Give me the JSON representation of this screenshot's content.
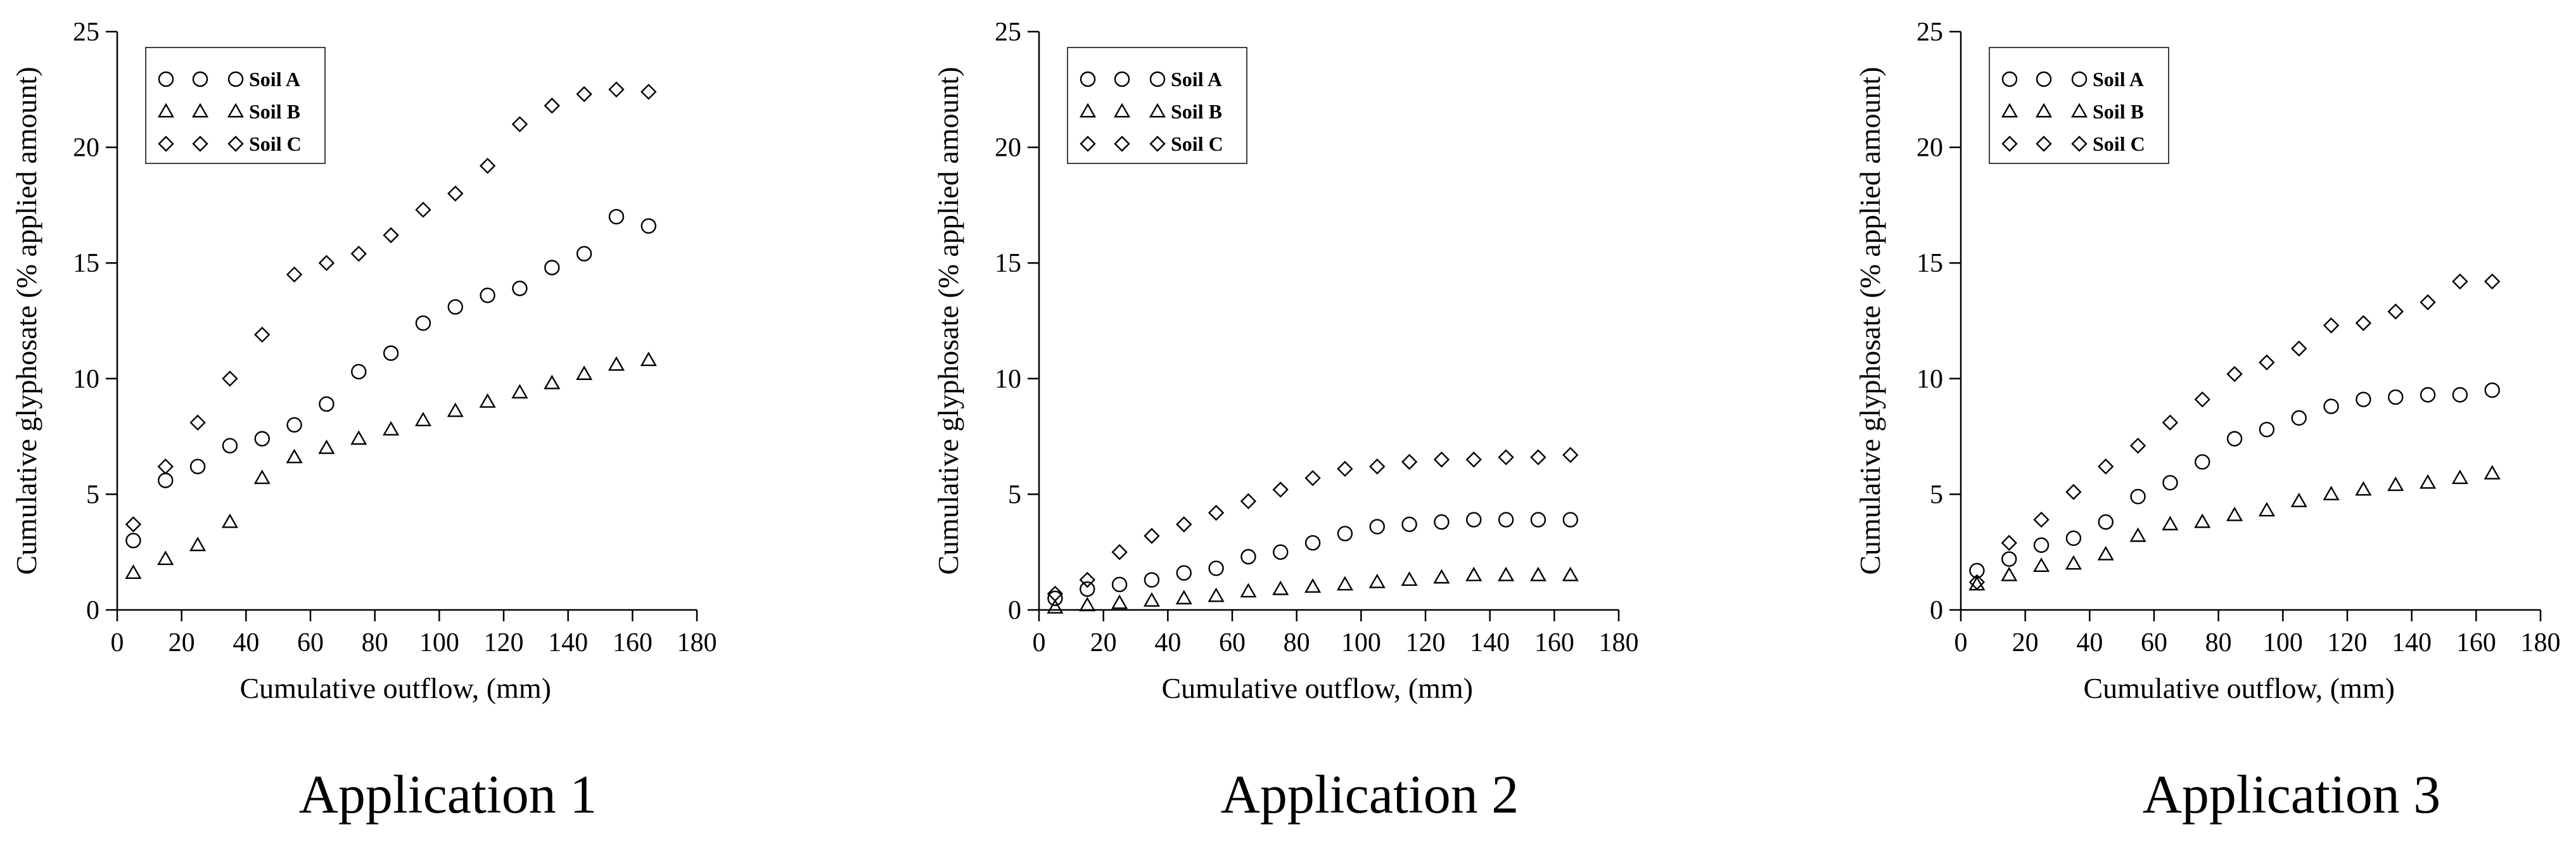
{
  "chart_data": [
    {
      "type": "scatter",
      "caption": "Application 1",
      "xlabel": "Cumulative outflow, (mm)",
      "ylabel": "Cumulative glyphosate (% applied amount)",
      "xlim": [
        0,
        180
      ],
      "ylim": [
        0,
        25
      ],
      "xticks": [
        0,
        20,
        40,
        60,
        80,
        100,
        120,
        140,
        160,
        180
      ],
      "yticks": [
        0,
        5,
        10,
        15,
        20,
        25
      ],
      "grid": false,
      "legend_position": "top-left",
      "x": [
        5,
        15,
        25,
        35,
        45,
        55,
        65,
        75,
        85,
        95,
        105,
        115,
        125,
        135,
        145,
        155,
        165
      ],
      "series": [
        {
          "name": "Soil A",
          "marker": "circle",
          "values": [
            3.0,
            5.6,
            6.2,
            7.1,
            7.4,
            8.0,
            8.9,
            10.3,
            11.1,
            12.4,
            13.1,
            13.6,
            13.9,
            14.8,
            15.4,
            17.0,
            16.6
          ]
        },
        {
          "name": "Soil B",
          "marker": "triangle",
          "values": [
            1.6,
            2.2,
            2.8,
            3.8,
            5.7,
            6.6,
            7.0,
            7.4,
            7.8,
            8.2,
            8.6,
            9.0,
            9.4,
            9.8,
            10.2,
            10.6,
            10.8
          ]
        },
        {
          "name": "Soil C",
          "marker": "diamond",
          "values": [
            3.7,
            6.2,
            8.1,
            10.0,
            11.9,
            14.5,
            15.0,
            15.4,
            16.2,
            17.3,
            18.0,
            19.2,
            21.0,
            21.8,
            22.3,
            22.5,
            22.4
          ]
        }
      ]
    },
    {
      "type": "scatter",
      "caption": "Application 2",
      "xlabel": "Cumulative outflow, (mm)",
      "ylabel": "Cumulative glyphosate (% applied amount)",
      "xlim": [
        0,
        180
      ],
      "ylim": [
        0,
        25
      ],
      "xticks": [
        0,
        20,
        40,
        60,
        80,
        100,
        120,
        140,
        160,
        180
      ],
      "yticks": [
        0,
        5,
        10,
        15,
        20,
        25
      ],
      "grid": false,
      "legend_position": "top-left",
      "x": [
        5,
        15,
        25,
        35,
        45,
        55,
        65,
        75,
        85,
        95,
        105,
        115,
        125,
        135,
        145,
        155,
        165
      ],
      "series": [
        {
          "name": "Soil A",
          "marker": "circle",
          "values": [
            0.5,
            0.9,
            1.1,
            1.3,
            1.6,
            1.8,
            2.3,
            2.5,
            2.9,
            3.3,
            3.6,
            3.7,
            3.8,
            3.9,
            3.9,
            3.9,
            3.9
          ]
        },
        {
          "name": "Soil B",
          "marker": "triangle",
          "values": [
            0.1,
            0.2,
            0.3,
            0.4,
            0.5,
            0.6,
            0.8,
            0.9,
            1.0,
            1.1,
            1.2,
            1.3,
            1.4,
            1.5,
            1.5,
            1.5,
            1.5
          ]
        },
        {
          "name": "Soil C",
          "marker": "diamond",
          "values": [
            0.7,
            1.3,
            2.5,
            3.2,
            3.7,
            4.2,
            4.7,
            5.2,
            5.7,
            6.1,
            6.2,
            6.4,
            6.5,
            6.5,
            6.6,
            6.6,
            6.7
          ]
        }
      ]
    },
    {
      "type": "scatter",
      "caption": "Application 3",
      "xlabel": "Cumulative outflow, (mm)",
      "ylabel": "Cumulative glyphosate (% applied amount)",
      "xlim": [
        0,
        180
      ],
      "ylim": [
        0,
        25
      ],
      "xticks": [
        0,
        20,
        40,
        60,
        80,
        100,
        120,
        140,
        160,
        180
      ],
      "yticks": [
        0,
        5,
        10,
        15,
        20,
        25
      ],
      "grid": false,
      "legend_position": "top-left",
      "x": [
        5,
        15,
        25,
        35,
        45,
        55,
        65,
        75,
        85,
        95,
        105,
        115,
        125,
        135,
        145,
        155,
        165
      ],
      "series": [
        {
          "name": "Soil A",
          "marker": "circle",
          "values": [
            1.7,
            2.2,
            2.8,
            3.1,
            3.8,
            4.9,
            5.5,
            6.4,
            7.4,
            7.8,
            8.3,
            8.8,
            9.1,
            9.2,
            9.3,
            9.3,
            9.5
          ]
        },
        {
          "name": "Soil B",
          "marker": "triangle",
          "values": [
            1.1,
            1.5,
            1.9,
            2.0,
            2.4,
            3.2,
            3.7,
            3.8,
            4.1,
            4.3,
            4.7,
            5.0,
            5.2,
            5.4,
            5.5,
            5.7,
            5.9
          ]
        },
        {
          "name": "Soil C",
          "marker": "diamond",
          "values": [
            1.2,
            2.9,
            3.9,
            5.1,
            6.2,
            7.1,
            8.1,
            9.1,
            10.2,
            10.7,
            11.3,
            12.3,
            12.4,
            12.9,
            13.3,
            14.2,
            14.2
          ]
        }
      ]
    }
  ]
}
